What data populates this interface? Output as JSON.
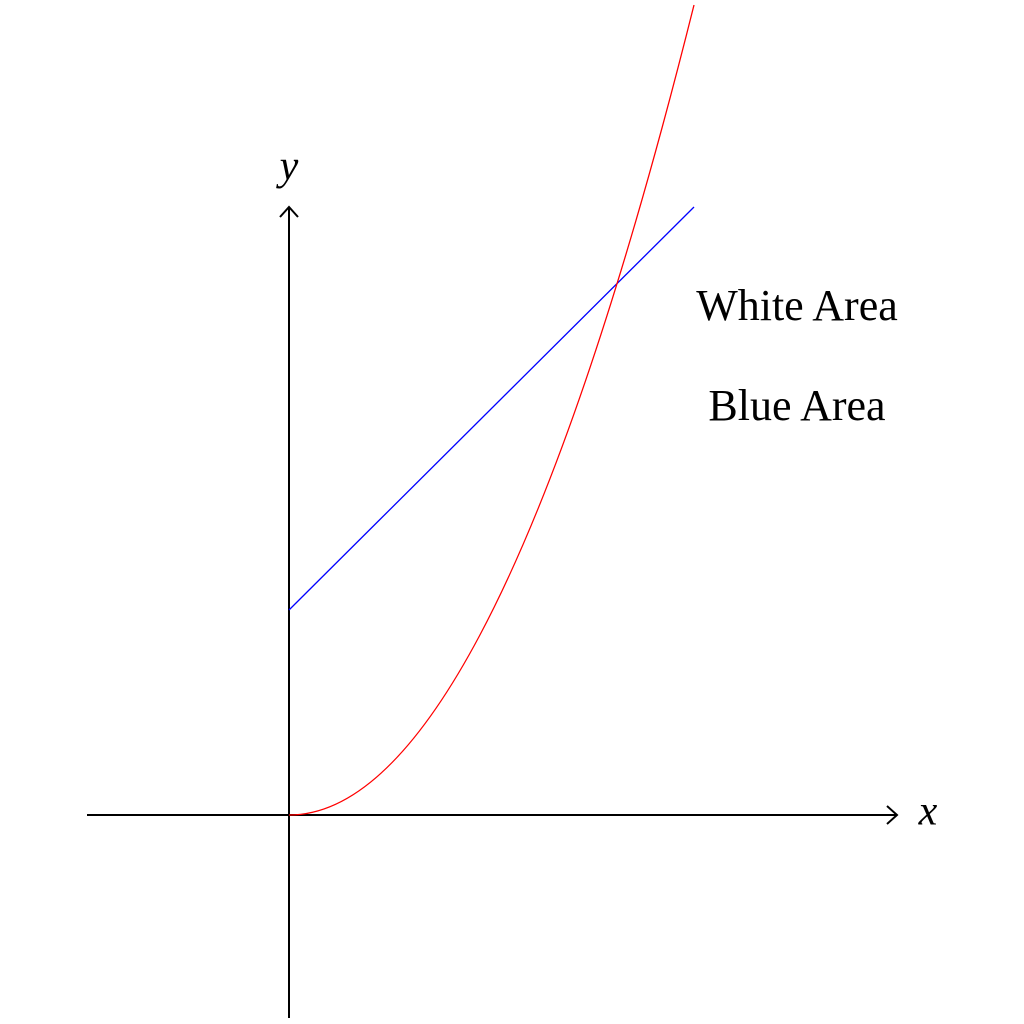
{
  "axes": {
    "x_label": "x",
    "y_label": "y"
  },
  "labels": {
    "white_area": "White Area",
    "blue_area": "Blue Area"
  }
}
